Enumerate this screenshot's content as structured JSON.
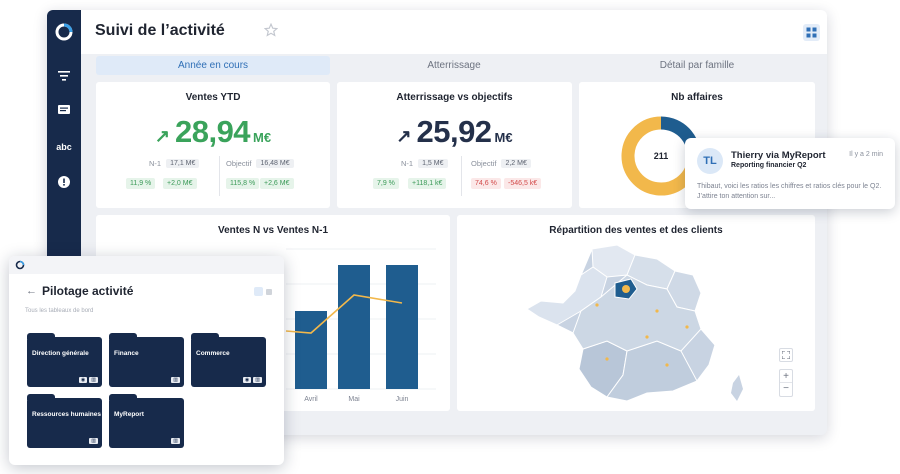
{
  "header": {
    "title": "Suivi de l’activité"
  },
  "sidebar": {
    "abc_label": "abc"
  },
  "tabs": [
    {
      "label": "Année en cours",
      "active": true
    },
    {
      "label": "Atterrissage",
      "active": false
    },
    {
      "label": "Détail par famille",
      "active": false
    }
  ],
  "cards": {
    "ventes_ytd": {
      "title": "Ventes YTD",
      "value": "28,94",
      "unit": "M€",
      "n1_label": "N-1",
      "n1_value": "17,1 M€",
      "obj_label": "Objectif",
      "obj_value": "16,48 M€",
      "pills": [
        "11,9 %",
        "+2,0 M€",
        "115,8 %",
        "+2,6 M€"
      ]
    },
    "atterrissage": {
      "title": "Atterrissage vs objectifs",
      "value": "25,92",
      "unit": "M€",
      "n1_label": "N-1",
      "n1_value": "1,5 M€",
      "obj_label": "Objectif",
      "obj_value": "2,2 M€",
      "pills": [
        "7,9 %",
        "+118,1 k€",
        "74,6 %",
        "-546,5 k€"
      ]
    },
    "affaires": {
      "title": "Nb affaires",
      "center_value": "211"
    },
    "ventes_nn1": {
      "title": "Ventes N vs Ventes N-1",
      "months": [
        "Avril",
        "Mai",
        "Juin"
      ]
    },
    "repartition": {
      "title": "Répartition des ventes et des clients"
    }
  },
  "notification": {
    "initials": "TL",
    "name": "Thierry via MyReport",
    "subject": "Reporting financier Q2",
    "time": "Il y a 2 min",
    "body": "Thibaut, voici les ratios les chiffres et ratios clés pour le Q2. J’attire ton attention sur..."
  },
  "pilot": {
    "title": "Pilotage activité",
    "hint": "Tous les tableaux de bord",
    "folders": [
      {
        "label": "Direction générale"
      },
      {
        "label": "Finance"
      },
      {
        "label": "Commerce"
      },
      {
        "label": "Ressources humaines"
      },
      {
        "label": "MyReport"
      }
    ]
  },
  "colors": {
    "navy": "#172a4b",
    "bar": "#1f5d8f",
    "accent": "#f2b84b",
    "green": "#3aa35b",
    "red": "#d24a4a"
  },
  "chart_data": [
    {
      "type": "bar",
      "title": "Ventes N vs Ventes N-1",
      "categories": [
        "Avril",
        "Mai",
        "Juin"
      ],
      "series": [
        {
          "values": [
            78,
            124,
            124
          ]
        },
        {
          "values": [
            56,
            94,
            86
          ]
        }
      ]
    },
    {
      "type": "pie",
      "title": "Nb affaires",
      "center_label": "211",
      "series": [
        {
          "values": [
            0.28,
            0.72
          ]
        }
      ]
    }
  ]
}
